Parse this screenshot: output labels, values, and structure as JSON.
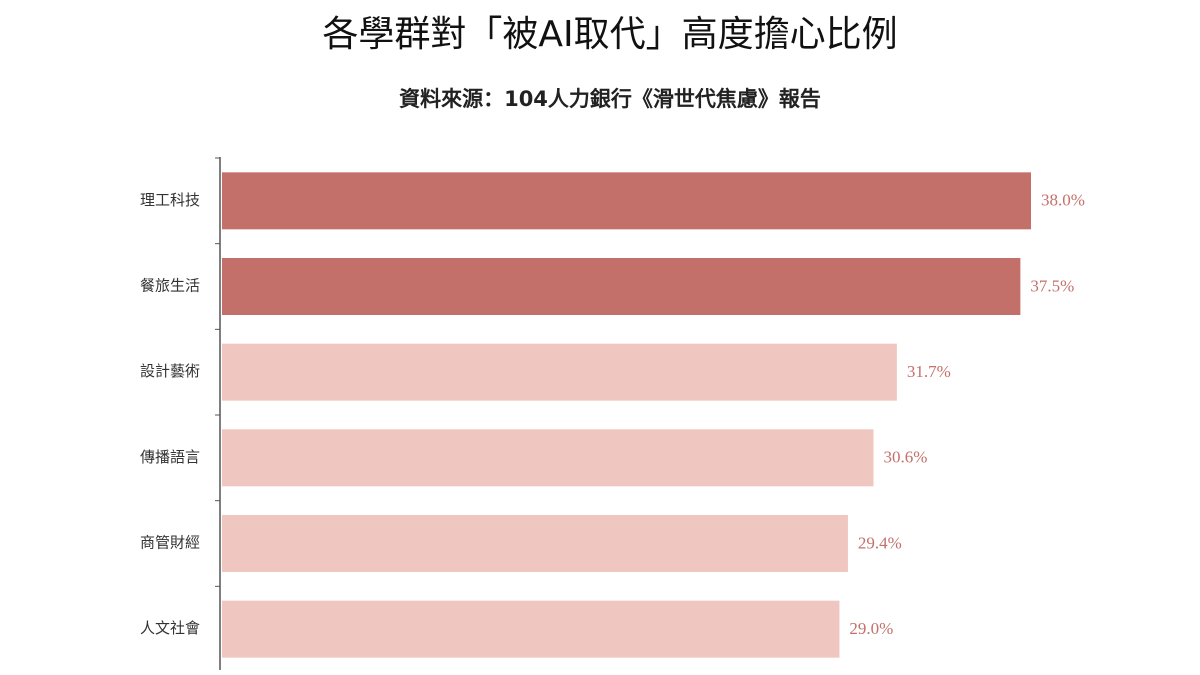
{
  "chart_data": {
    "type": "barh",
    "title": "各學群對「被AI取代」高度擔心比例",
    "subtitle": "資料來源：104人力銀行《滑世代焦慮》報告",
    "categories": [
      "理工科技",
      "餐旅生活",
      "設計藝術",
      "傳播語言",
      "商管財經",
      "人文社會"
    ],
    "values": [
      38.0,
      37.5,
      31.7,
      30.6,
      29.4,
      29.0
    ],
    "value_labels": [
      "38.0%",
      "37.5%",
      "31.7%",
      "30.6%",
      "29.4%",
      "29.0%"
    ],
    "colors": [
      "#c4706a",
      "#c4706a",
      "#efc7c0",
      "#efc7c0",
      "#efc7c0",
      "#efc7c0"
    ],
    "label_color": "#c4706a",
    "xlim": [
      0,
      40
    ]
  }
}
